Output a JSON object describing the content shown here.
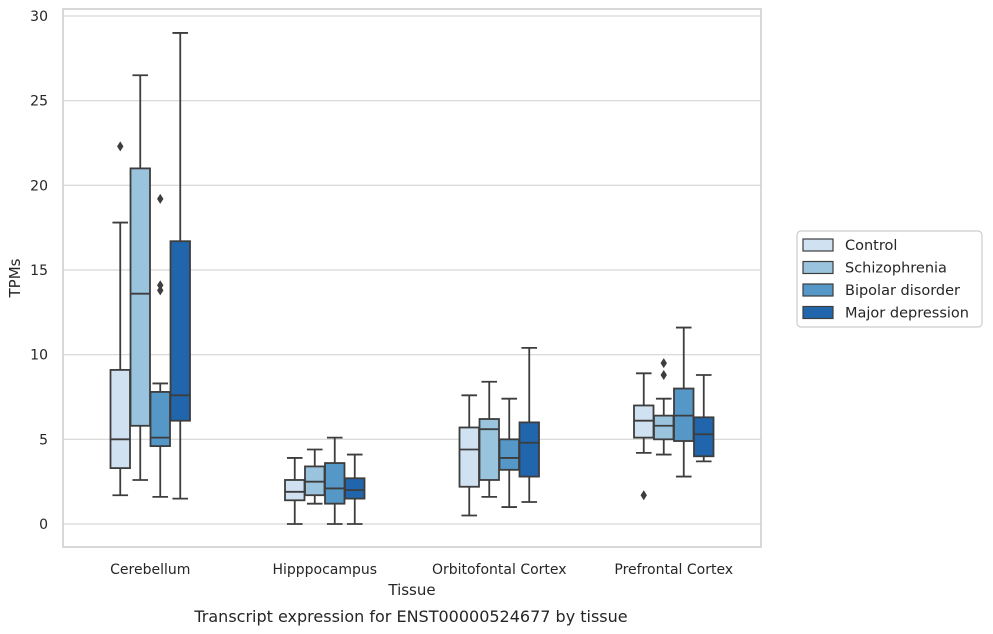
{
  "chart_data": {
    "type": "box",
    "caption": "Transcript expression for ENST00000524677 by tissue",
    "xlabel": "Tissue",
    "ylabel": "TPMs",
    "ylim": [
      -1.4,
      30.4
    ],
    "yticks": [
      0,
      5,
      10,
      15,
      20,
      25,
      30
    ],
    "grid": true,
    "legend_position": "right",
    "categories": [
      "Cerebellum",
      "Hipppocampus",
      "Orbitofontal Cortex",
      "Prefrontal Cortex"
    ],
    "series": [
      {
        "name": "Control",
        "color": "#d0e1f2",
        "boxes": [
          {
            "whislo": 1.7,
            "q1": 3.3,
            "med": 5.0,
            "q3": 9.1,
            "whishi": 17.8,
            "fliers": [
              22.3
            ]
          },
          {
            "whislo": 0.0,
            "q1": 1.4,
            "med": 1.9,
            "q3": 2.6,
            "whishi": 3.9,
            "fliers": []
          },
          {
            "whislo": 0.5,
            "q1": 2.2,
            "med": 4.4,
            "q3": 5.7,
            "whishi": 7.6,
            "fliers": []
          },
          {
            "whislo": 4.2,
            "q1": 5.1,
            "med": 6.1,
            "q3": 7.0,
            "whishi": 8.9,
            "fliers": [
              1.7
            ]
          }
        ]
      },
      {
        "name": "Schizophrenia",
        "color": "#9ac3dd",
        "boxes": [
          {
            "whislo": 2.6,
            "q1": 5.8,
            "med": 13.6,
            "q3": 21.0,
            "whishi": 26.5,
            "fliers": []
          },
          {
            "whislo": 1.2,
            "q1": 1.7,
            "med": 2.5,
            "q3": 3.4,
            "whishi": 4.4,
            "fliers": []
          },
          {
            "whislo": 1.6,
            "q1": 2.6,
            "med": 5.6,
            "q3": 6.2,
            "whishi": 8.4,
            "fliers": []
          },
          {
            "whislo": 4.1,
            "q1": 5.0,
            "med": 5.8,
            "q3": 6.4,
            "whishi": 7.4,
            "fliers": [
              8.8,
              9.5
            ]
          }
        ]
      },
      {
        "name": "Bipolar disorder",
        "color": "#5597c6",
        "boxes": [
          {
            "whislo": 1.6,
            "q1": 4.6,
            "med": 5.1,
            "q3": 7.8,
            "whishi": 8.3,
            "fliers": [
              13.8,
              14.1,
              19.2
            ]
          },
          {
            "whislo": 0.0,
            "q1": 1.2,
            "med": 2.1,
            "q3": 3.6,
            "whishi": 5.1,
            "fliers": []
          },
          {
            "whislo": 1.0,
            "q1": 3.2,
            "med": 3.9,
            "q3": 5.0,
            "whishi": 7.4,
            "fliers": []
          },
          {
            "whislo": 2.8,
            "q1": 4.9,
            "med": 6.4,
            "q3": 8.0,
            "whishi": 11.6,
            "fliers": []
          }
        ]
      },
      {
        "name": "Major depression",
        "color": "#2166ac",
        "boxes": [
          {
            "whislo": 1.5,
            "q1": 6.1,
            "med": 7.6,
            "q3": 16.7,
            "whishi": 29.0,
            "fliers": []
          },
          {
            "whislo": 0.0,
            "q1": 1.5,
            "med": 2.0,
            "q3": 2.7,
            "whishi": 4.1,
            "fliers": []
          },
          {
            "whislo": 1.3,
            "q1": 2.8,
            "med": 4.8,
            "q3": 6.0,
            "whishi": 10.4,
            "fliers": []
          },
          {
            "whislo": 3.7,
            "q1": 4.0,
            "med": 5.3,
            "q3": 6.3,
            "whishi": 8.8,
            "fliers": []
          }
        ]
      }
    ]
  }
}
